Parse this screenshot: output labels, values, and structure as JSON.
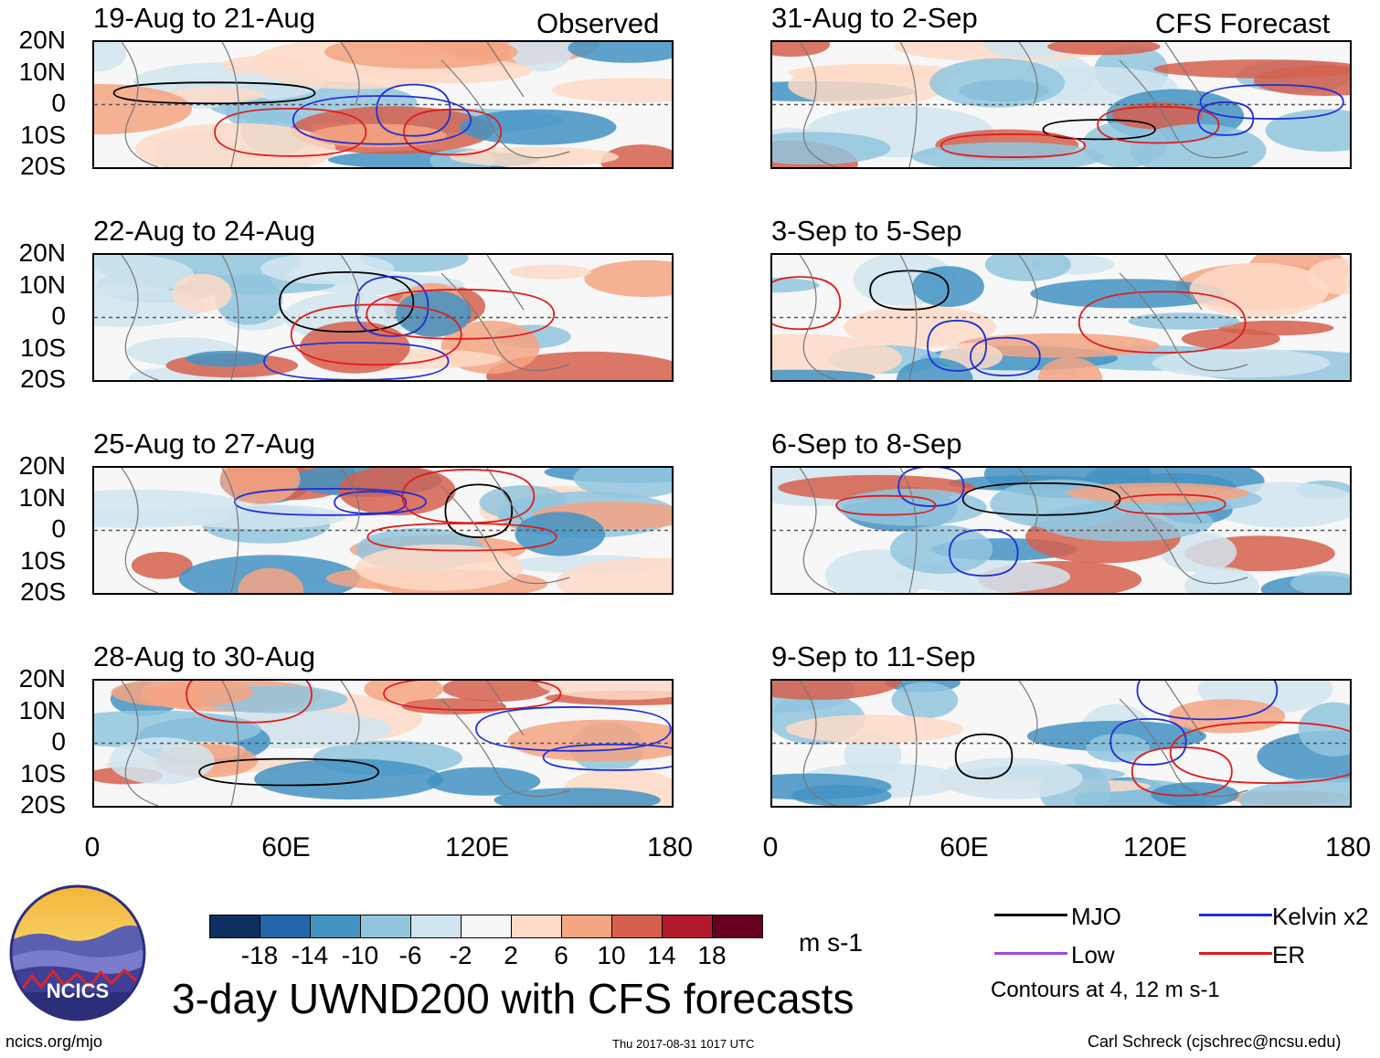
{
  "header": {
    "left_tag": "Observed",
    "right_tag": "CFS Forecast"
  },
  "chart_data": {
    "type": "heatmap",
    "title": "3-day UWND200 with CFS forecasts",
    "xlabel": "",
    "ylabel": "",
    "x_ticks": [
      "0",
      "60E",
      "120E",
      "180"
    ],
    "y_ticks": [
      "20N",
      "10N",
      "0",
      "10S",
      "20S"
    ],
    "xlim": [
      0,
      180
    ],
    "ylim": [
      -20,
      20
    ],
    "panels": [
      {
        "title": "19-Aug to 21-Aug",
        "column": "observed"
      },
      {
        "title": "22-Aug to 24-Aug",
        "column": "observed"
      },
      {
        "title": "25-Aug to 27-Aug",
        "column": "observed"
      },
      {
        "title": "28-Aug to 30-Aug",
        "column": "observed"
      },
      {
        "title": "31-Aug to 2-Sep",
        "column": "forecast"
      },
      {
        "title": "3-Sep to 5-Sep",
        "column": "forecast"
      },
      {
        "title": "6-Sep to 8-Sep",
        "column": "forecast"
      },
      {
        "title": "9-Sep to 11-Sep",
        "column": "forecast"
      }
    ],
    "colorbar": {
      "labels": [
        "-18",
        "-14",
        "-10",
        "-6",
        "-2",
        "2",
        "6",
        "10",
        "14",
        "18"
      ],
      "colors": [
        "#0d3060",
        "#2166ac",
        "#4393c3",
        "#92c5de",
        "#d1e5f0",
        "#f7f7f7",
        "#fddbc7",
        "#f4a582",
        "#d6604d",
        "#b2182b",
        "#67001f"
      ],
      "units": "m s-1"
    },
    "legend": [
      {
        "label": "MJO",
        "color": "#000000"
      },
      {
        "label": "Kelvin x2",
        "color": "#1f2ed8"
      },
      {
        "label": "Low",
        "color": "#a24bd6"
      },
      {
        "label": "ER",
        "color": "#e01b1b"
      }
    ],
    "contour_note": "Contours at 4, 12 m s-1"
  },
  "footer": {
    "logo_text": "NCICS",
    "url": "ncics.org/mjo",
    "timestamp": "Thu 2017-08-31 1017 UTC",
    "author": "Carl Schreck (cjschrec@ncsu.edu)"
  }
}
